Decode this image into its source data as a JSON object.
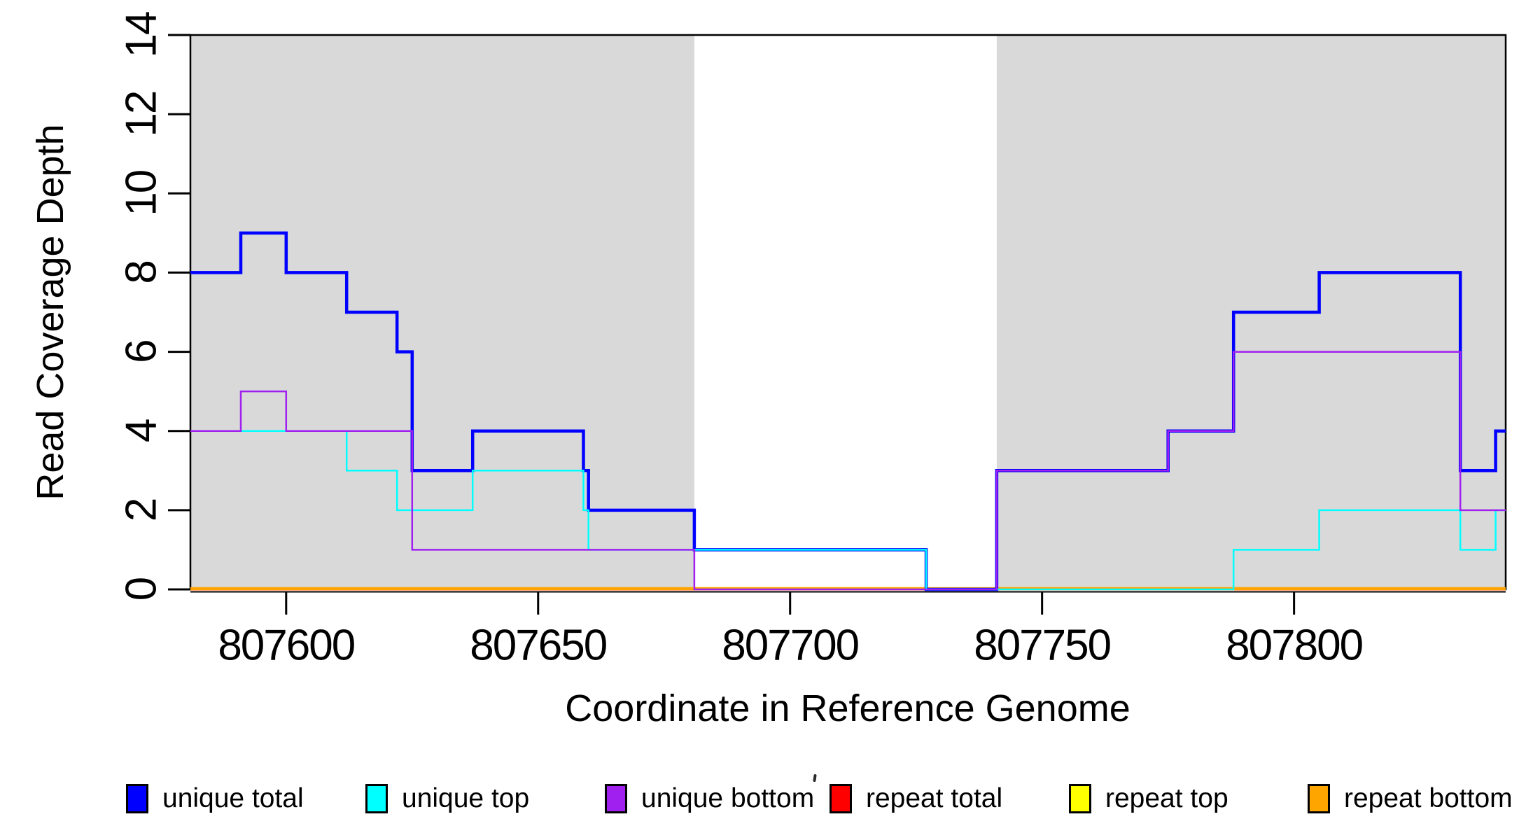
{
  "figure": {
    "background": "#FFFFFF",
    "text_color": "#000000"
  },
  "chart_data": {
    "type": "line",
    "subtype": "step-coverage-plot",
    "title": "",
    "xlabel": "Coordinate in Reference Genome",
    "ylabel": "Read Coverage Depth",
    "xlim": [
      807581,
      807842
    ],
    "ylim": [
      0,
      14
    ],
    "x_ticks": [
      807600,
      807650,
      807700,
      807750,
      807800
    ],
    "y_ticks": [
      0,
      2,
      4,
      6,
      8,
      10,
      12,
      14
    ],
    "grid": false,
    "legend_position": "bottom",
    "plot_bg": "#FFFFFF",
    "shaded_regions": [
      {
        "from": 807581,
        "to": 807681,
        "color": "#D9D9D9"
      },
      {
        "from": 807741,
        "to": 807842,
        "color": "#D9D9D9"
      }
    ],
    "series": [
      {
        "name": "repeat top",
        "color": "#FFFF00",
        "line_width": 3,
        "dy": 0,
        "steps": [
          [
            807581,
            0
          ]
        ]
      },
      {
        "name": "repeat total",
        "color": "#FF0000",
        "line_width": 3,
        "dy": 0,
        "steps": [
          [
            807581,
            0
          ]
        ]
      },
      {
        "name": "repeat bottom",
        "color": "#FFA500",
        "line_width": 4.5,
        "dy": -1,
        "steps": [
          [
            807581,
            0
          ]
        ]
      },
      {
        "name": "unique total",
        "color": "#0000FF",
        "line_width": 4.5,
        "dy": 0,
        "steps": [
          [
            807581,
            8
          ],
          [
            807591,
            9
          ],
          [
            807600,
            8
          ],
          [
            807612,
            7
          ],
          [
            807622,
            6
          ],
          [
            807625,
            3
          ],
          [
            807637,
            4
          ],
          [
            807659,
            3
          ],
          [
            807660,
            2
          ],
          [
            807681,
            1
          ],
          [
            807727,
            0
          ],
          [
            807741,
            3
          ],
          [
            807775,
            4
          ],
          [
            807788,
            7
          ],
          [
            807805,
            8
          ],
          [
            807833,
            3
          ],
          [
            807840,
            4
          ]
        ]
      },
      {
        "name": "unique top",
        "color": "#00FFFF",
        "line_width": 2.5,
        "dy": 0,
        "steps": [
          [
            807581,
            4
          ],
          [
            807612,
            3
          ],
          [
            807622,
            2
          ],
          [
            807637,
            3
          ],
          [
            807659,
            2
          ],
          [
            807660,
            1
          ],
          [
            807727,
            0
          ],
          [
            807788,
            1
          ],
          [
            807805,
            2
          ],
          [
            807833,
            1
          ],
          [
            807840,
            2
          ]
        ]
      },
      {
        "name": "unique bottom",
        "color": "#A020F0",
        "line_width": 2.5,
        "dy": 0,
        "steps": [
          [
            807581,
            4
          ],
          [
            807591,
            5
          ],
          [
            807600,
            4
          ],
          [
            807625,
            1
          ],
          [
            807681,
            0
          ],
          [
            807741,
            3
          ],
          [
            807775,
            4
          ],
          [
            807788,
            6
          ],
          [
            807833,
            2
          ]
        ]
      }
    ]
  },
  "legend": {
    "items": [
      {
        "label": "unique total",
        "color": "#0000FF"
      },
      {
        "label": "unique top",
        "color": "#00FFFF"
      },
      {
        "label": "unique bottom",
        "color": "#A020F0"
      },
      {
        "label": "repeat total",
        "color": "#FF0000"
      },
      {
        "label": "repeat top",
        "color": "#FFFF00"
      },
      {
        "label": "repeat bottom",
        "color": "#FFA500"
      }
    ]
  }
}
